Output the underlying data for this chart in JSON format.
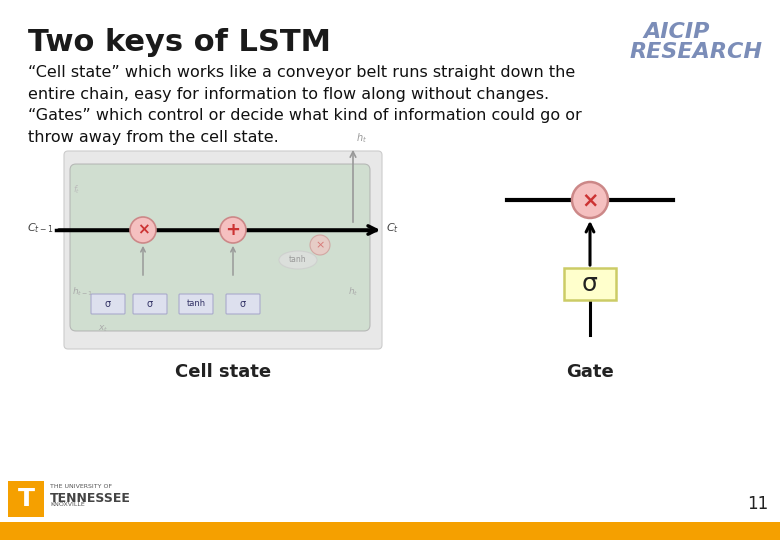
{
  "title": "Two keys of LSTM",
  "title_fontsize": 22,
  "body_text": "“Cell state” which works like a conveyor belt runs straight down the\nentire chain, easy for information to flow along without changes.\n“Gates” which control or decide what kind of information could go or\nthrow away from the cell state.",
  "body_fontsize": 11.5,
  "label_cell": "Cell state",
  "label_gate": "Gate",
  "label_fontsize": 13,
  "aicip_line1": "AICIP",
  "aicip_line2": "RESEARCH",
  "aicip_color": "#7B8DB8",
  "slide_bg": "#ffffff",
  "lstm_bg_color": "#c8dbc8",
  "circle_fill": "#f5c0c0",
  "circle_edge": "#cc8888",
  "sigma_box_fill": "#ffffcc",
  "sigma_box_edge": "#cccc66",
  "footer_bar_color": "#f5a000",
  "ut_orange": "#f5a000",
  "page_number": "11",
  "gray_bg": "#e8e8e8"
}
